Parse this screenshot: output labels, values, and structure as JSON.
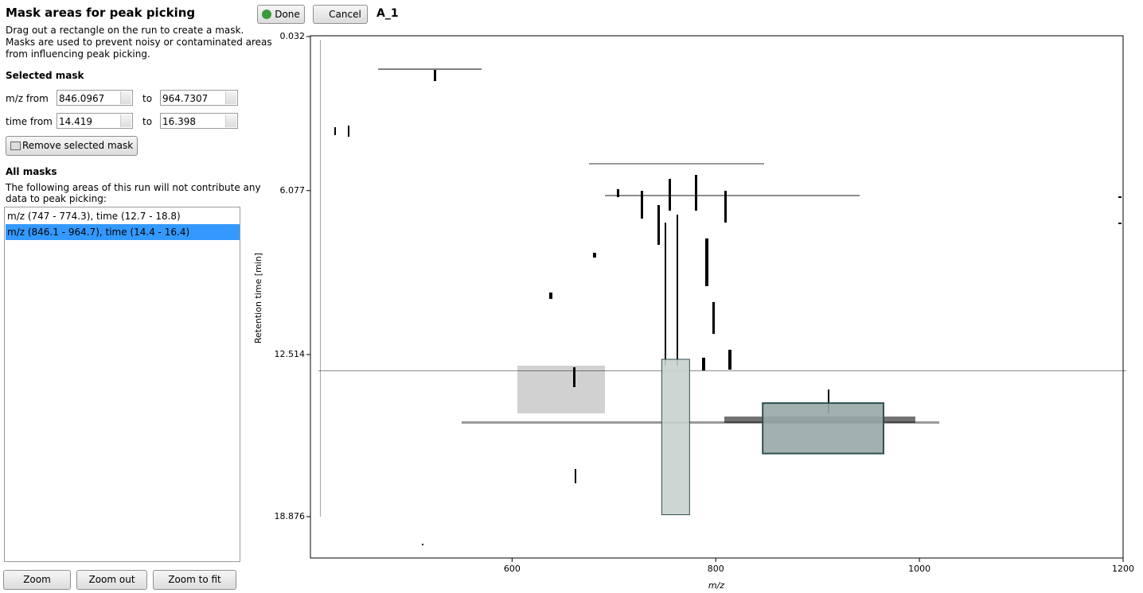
{
  "panel": {
    "title": "Mask areas for peak picking",
    "instructions": [
      "Drag out a rectangle on the run to create a mask.",
      "Masks are used to prevent noisy or contaminated areas",
      "from influencing peak picking."
    ],
    "selected_heading": "Selected mask",
    "mz_from_label": "m/z from",
    "mz_from": "846.0967",
    "mz_to_label": "to",
    "mz_to": "964.7307",
    "time_from_label": "time from",
    "time_from": "14.419",
    "time_to_label": "to",
    "time_to": "16.398",
    "remove_button": "Remove selected mask",
    "all_heading": "All masks",
    "all_description": [
      "The following areas of this run will not contribute any",
      "data to peak picking:"
    ],
    "mask_list": [
      "m/z (747 - 774.3), time (12.7 - 18.8)",
      "m/z (846.1 - 964.7), time (14.4 - 16.4)"
    ],
    "zoom_buttons": [
      "Zoom",
      "Zoom out",
      "Zoom to fit"
    ]
  },
  "toolbar": {
    "done": "Done",
    "cancel": "Cancel",
    "run": "A_1"
  },
  "plot": {
    "xlabel": "m/z",
    "ylabel": "Retention time [min]",
    "xlim": [
      402,
      1200
    ],
    "xticks": [
      600,
      800,
      1000,
      1200
    ],
    "ylim": [
      0,
      20.5
    ],
    "yticks": [
      0.032,
      6.077,
      12.514,
      18.876
    ],
    "masks": [
      {
        "mz": [
          747,
          774.3
        ],
        "time": [
          12.7,
          18.8
        ],
        "color": "#c9d1cf"
      },
      {
        "mz": [
          846.0967,
          964.7307
        ],
        "time": [
          14.419,
          16.398
        ],
        "color": "#98a8a6"
      }
    ]
  }
}
